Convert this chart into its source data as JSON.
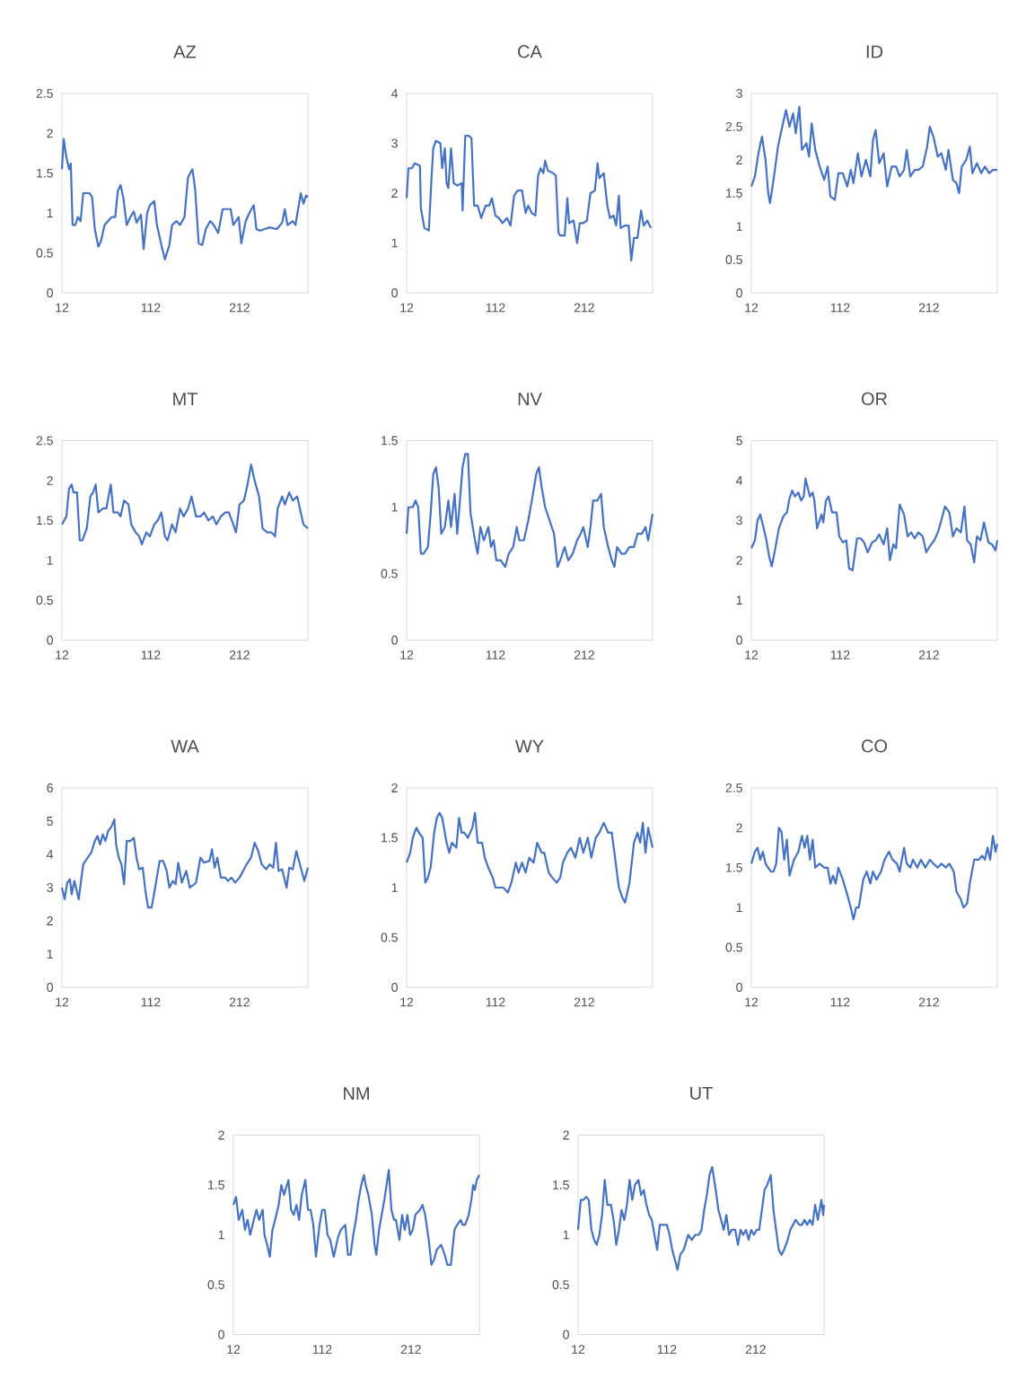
{
  "chart_data": [
    {
      "type": "line",
      "title": "AZ",
      "color": "#4472c4",
      "xlim": [
        12,
        289
      ],
      "xticks": [
        12,
        112,
        212
      ],
      "ylim": [
        0,
        2.5
      ],
      "yticks": [
        0,
        0.5,
        1,
        1.5,
        2,
        2.5
      ],
      "x": [
        12,
        14,
        17,
        20,
        22,
        24,
        27,
        30,
        33,
        36,
        43,
        46,
        49,
        53,
        56,
        60,
        64,
        68,
        72,
        75,
        78,
        81,
        85,
        89,
        93,
        96,
        101,
        104,
        108,
        111,
        116,
        119,
        124,
        128,
        133,
        136,
        141,
        145,
        150,
        154,
        159,
        162,
        166,
        170,
        174,
        179,
        183,
        188,
        193,
        197,
        202,
        205,
        211,
        214,
        219,
        223,
        228,
        231,
        235,
        240,
        246,
        254,
        260,
        263,
        266,
        272,
        275,
        281,
        284,
        287,
        289
      ],
      "values": [
        1.55,
        1.93,
        1.7,
        1.55,
        1.62,
        0.85,
        0.85,
        0.95,
        0.9,
        1.25,
        1.25,
        1.2,
        0.8,
        0.58,
        0.65,
        0.85,
        0.9,
        0.95,
        0.95,
        1.28,
        1.35,
        1.2,
        0.85,
        0.95,
        1.02,
        0.88,
        0.98,
        0.55,
        1.0,
        1.1,
        1.15,
        0.85,
        0.6,
        0.42,
        0.6,
        0.85,
        0.9,
        0.85,
        0.95,
        1.45,
        1.55,
        1.3,
        0.62,
        0.6,
        0.8,
        0.9,
        0.85,
        0.75,
        1.05,
        1.05,
        1.05,
        0.85,
        0.95,
        0.62,
        0.9,
        1.0,
        1.1,
        0.8,
        0.78,
        0.8,
        0.82,
        0.8,
        0.88,
        1.05,
        0.85,
        0.9,
        0.85,
        1.25,
        1.12,
        1.22,
        1.2
      ]
    },
    {
      "type": "line",
      "title": "CA",
      "color": "#4472c4",
      "xlim": [
        12,
        289
      ],
      "xticks": [
        12,
        112,
        212
      ],
      "ylim": [
        0,
        4
      ],
      "yticks": [
        0,
        1,
        2,
        3,
        4
      ],
      "x": [
        12,
        14,
        18,
        21,
        27,
        28,
        32,
        37,
        40,
        42,
        45,
        50,
        52,
        55,
        57,
        59,
        62,
        65,
        69,
        74,
        75,
        78,
        82,
        85,
        88,
        92,
        96,
        101,
        105,
        108,
        112,
        116,
        120,
        125,
        129,
        133,
        137,
        142,
        146,
        149,
        153,
        157,
        160,
        163,
        166,
        168,
        171,
        177,
        180,
        183,
        185,
        190,
        193,
        195,
        200,
        204,
        207,
        211,
        215,
        219,
        224,
        227,
        229,
        234,
        238,
        241,
        245,
        248,
        251,
        253,
        258,
        262,
        265,
        268,
        272,
        276,
        279,
        283,
        287
      ],
      "values": [
        1.9,
        2.5,
        2.5,
        2.6,
        2.55,
        1.7,
        1.3,
        1.25,
        2.3,
        2.9,
        3.05,
        3.0,
        2.5,
        2.9,
        2.2,
        2.1,
        2.9,
        2.2,
        2.15,
        2.2,
        1.65,
        3.15,
        3.15,
        3.1,
        1.75,
        1.75,
        1.5,
        1.75,
        1.75,
        1.9,
        1.55,
        1.5,
        1.4,
        1.5,
        1.35,
        1.95,
        2.05,
        2.05,
        1.6,
        1.75,
        1.6,
        1.55,
        2.35,
        2.5,
        2.4,
        2.65,
        2.45,
        2.4,
        2.35,
        1.2,
        1.15,
        1.15,
        1.9,
        1.4,
        1.45,
        1.0,
        1.4,
        1.4,
        1.45,
        2.0,
        2.05,
        2.6,
        2.3,
        2.4,
        1.75,
        1.5,
        1.55,
        1.35,
        1.95,
        1.3,
        1.35,
        1.35,
        0.65,
        1.1,
        1.1,
        1.65,
        1.35,
        1.45,
        1.3
      ]
    },
    {
      "type": "line",
      "title": "ID",
      "color": "#4472c4",
      "xlim": [
        12,
        289
      ],
      "xticks": [
        12,
        112,
        212
      ],
      "ylim": [
        0,
        3
      ],
      "yticks": [
        0,
        0.5,
        1,
        1.5,
        2,
        2.5,
        3
      ],
      "x": [
        12,
        16,
        20,
        24,
        28,
        31,
        33,
        37,
        42,
        46,
        51,
        55,
        59,
        62,
        66,
        69,
        74,
        77,
        80,
        84,
        89,
        94,
        98,
        101,
        106,
        110,
        115,
        120,
        124,
        127,
        132,
        136,
        141,
        146,
        149,
        152,
        156,
        161,
        165,
        170,
        175,
        179,
        184,
        187,
        191,
        196,
        200,
        205,
        210,
        213,
        217,
        222,
        226,
        231,
        234,
        239,
        243,
        246,
        249,
        254,
        258,
        261,
        266,
        271,
        275,
        280,
        284,
        289
      ],
      "values": [
        1.6,
        1.75,
        2.1,
        2.35,
        2.0,
        1.5,
        1.35,
        1.7,
        2.2,
        2.45,
        2.75,
        2.5,
        2.7,
        2.4,
        2.8,
        2.15,
        2.25,
        2.05,
        2.55,
        2.15,
        1.9,
        1.7,
        1.9,
        1.45,
        1.4,
        1.8,
        1.8,
        1.6,
        1.85,
        1.65,
        2.1,
        1.75,
        2.0,
        1.75,
        2.3,
        2.45,
        1.95,
        2.1,
        1.6,
        1.9,
        1.9,
        1.75,
        1.85,
        2.15,
        1.75,
        1.85,
        1.85,
        1.9,
        2.2,
        2.5,
        2.35,
        2.05,
        2.1,
        1.85,
        2.15,
        1.7,
        1.65,
        1.5,
        1.9,
        2.0,
        2.2,
        1.8,
        1.95,
        1.8,
        1.9,
        1.8,
        1.85,
        1.85
      ]
    },
    {
      "type": "line",
      "title": "MT",
      "color": "#4472c4",
      "xlim": [
        12,
        289
      ],
      "xticks": [
        12,
        112,
        212
      ],
      "ylim": [
        0,
        2.5
      ],
      "yticks": [
        0,
        0.5,
        1,
        1.5,
        2,
        2.5
      ],
      "x": [
        12,
        17,
        20,
        23,
        25,
        29,
        32,
        35,
        40,
        44,
        47,
        50,
        53,
        58,
        62,
        67,
        70,
        75,
        78,
        82,
        87,
        90,
        95,
        99,
        102,
        107,
        111,
        116,
        120,
        124,
        128,
        131,
        136,
        140,
        145,
        149,
        154,
        158,
        163,
        168,
        172,
        177,
        182,
        186,
        191,
        196,
        200,
        205,
        208,
        212,
        217,
        221,
        225,
        229,
        234,
        238,
        243,
        248,
        252,
        255,
        260,
        263,
        268,
        272,
        277,
        281,
        284,
        289
      ],
      "values": [
        1.45,
        1.55,
        1.9,
        1.95,
        1.85,
        1.85,
        1.25,
        1.25,
        1.4,
        1.8,
        1.85,
        1.95,
        1.6,
        1.65,
        1.65,
        1.95,
        1.6,
        1.6,
        1.55,
        1.75,
        1.7,
        1.45,
        1.35,
        1.3,
        1.2,
        1.35,
        1.3,
        1.45,
        1.5,
        1.6,
        1.3,
        1.25,
        1.45,
        1.35,
        1.65,
        1.55,
        1.65,
        1.8,
        1.55,
        1.55,
        1.6,
        1.5,
        1.55,
        1.45,
        1.55,
        1.6,
        1.6,
        1.45,
        1.35,
        1.7,
        1.75,
        1.95,
        2.2,
        2.0,
        1.8,
        1.4,
        1.35,
        1.35,
        1.3,
        1.65,
        1.8,
        1.7,
        1.85,
        1.75,
        1.8,
        1.6,
        1.45,
        1.4
      ]
    },
    {
      "type": "line",
      "title": "NV",
      "color": "#4472c4",
      "xlim": [
        12,
        289
      ],
      "xticks": [
        12,
        112,
        212
      ],
      "ylim": [
        0,
        1.5
      ],
      "yticks": [
        0,
        0.5,
        1,
        1.5
      ],
      "x": [
        12,
        14,
        19,
        22,
        25,
        28,
        31,
        36,
        39,
        42,
        45,
        48,
        51,
        55,
        59,
        62,
        66,
        69,
        72,
        75,
        78,
        81,
        84,
        89,
        92,
        95,
        99,
        104,
        107,
        110,
        113,
        118,
        123,
        127,
        132,
        136,
        139,
        144,
        149,
        153,
        158,
        161,
        164,
        168,
        173,
        178,
        182,
        185,
        190,
        194,
        199,
        204,
        208,
        211,
        216,
        219,
        222,
        227,
        231,
        234,
        239,
        243,
        246,
        249,
        254,
        258,
        263,
        268,
        272,
        277,
        281,
        284,
        289
      ],
      "values": [
        0.8,
        1.0,
        1.0,
        1.05,
        1.0,
        0.65,
        0.65,
        0.7,
        0.95,
        1.25,
        1.3,
        1.15,
        0.8,
        0.85,
        1.05,
        0.85,
        1.1,
        0.8,
        1.05,
        1.3,
        1.4,
        1.4,
        0.95,
        0.75,
        0.65,
        0.85,
        0.75,
        0.85,
        0.7,
        0.75,
        0.6,
        0.6,
        0.55,
        0.65,
        0.7,
        0.85,
        0.75,
        0.75,
        0.9,
        1.05,
        1.25,
        1.3,
        1.15,
        1.0,
        0.9,
        0.8,
        0.55,
        0.6,
        0.7,
        0.6,
        0.65,
        0.75,
        0.8,
        0.85,
        0.7,
        0.85,
        1.05,
        1.05,
        1.1,
        0.85,
        0.7,
        0.6,
        0.55,
        0.7,
        0.65,
        0.65,
        0.7,
        0.7,
        0.8,
        0.8,
        0.85,
        0.75,
        0.95
      ]
    },
    {
      "type": "line",
      "title": "OR",
      "color": "#4472c4",
      "xlim": [
        12,
        289
      ],
      "xticks": [
        12,
        112,
        212
      ],
      "ylim": [
        0,
        5
      ],
      "yticks": [
        0,
        1,
        2,
        3,
        4,
        5
      ],
      "x": [
        12,
        16,
        19,
        22,
        26,
        29,
        32,
        35,
        39,
        43,
        48,
        52,
        55,
        58,
        61,
        65,
        68,
        71,
        73,
        78,
        81,
        83,
        86,
        91,
        93,
        96,
        99,
        103,
        108,
        111,
        115,
        119,
        122,
        126,
        131,
        135,
        139,
        143,
        148,
        152,
        156,
        161,
        165,
        168,
        172,
        175,
        179,
        184,
        188,
        192,
        196,
        200,
        205,
        209,
        213,
        218,
        222,
        226,
        230,
        235,
        239,
        243,
        248,
        252,
        255,
        259,
        263,
        266,
        270,
        274,
        279,
        283,
        287,
        289
      ],
      "values": [
        2.3,
        2.5,
        3.0,
        3.15,
        2.8,
        2.5,
        2.1,
        1.85,
        2.3,
        2.8,
        3.1,
        3.2,
        3.55,
        3.75,
        3.6,
        3.7,
        3.5,
        3.6,
        4.05,
        3.6,
        3.7,
        3.5,
        2.8,
        3.15,
        2.95,
        3.5,
        3.6,
        3.2,
        3.2,
        2.6,
        2.45,
        2.5,
        1.8,
        1.75,
        2.55,
        2.55,
        2.45,
        2.2,
        2.45,
        2.5,
        2.65,
        2.4,
        2.8,
        2.0,
        2.4,
        2.3,
        3.4,
        3.15,
        2.6,
        2.7,
        2.55,
        2.7,
        2.6,
        2.2,
        2.35,
        2.5,
        2.7,
        3.0,
        3.35,
        3.2,
        2.6,
        2.8,
        2.7,
        3.35,
        2.5,
        2.4,
        1.95,
        2.6,
        2.5,
        2.95,
        2.45,
        2.4,
        2.25,
        2.5
      ]
    },
    {
      "type": "line",
      "title": "WA",
      "color": "#4472c4",
      "xlim": [
        12,
        289
      ],
      "xticks": [
        12,
        112,
        212
      ],
      "ylim": [
        0,
        6
      ],
      "yticks": [
        0,
        1,
        2,
        3,
        4,
        5,
        6
      ],
      "x": [
        12,
        15,
        18,
        21,
        23,
        26,
        31,
        33,
        36,
        41,
        45,
        49,
        52,
        55,
        58,
        61,
        64,
        68,
        71,
        73,
        76,
        79,
        82,
        85,
        89,
        93,
        96,
        99,
        103,
        106,
        109,
        113,
        117,
        122,
        126,
        130,
        133,
        137,
        140,
        143,
        147,
        152,
        156,
        161,
        163,
        168,
        172,
        178,
        181,
        184,
        187,
        191,
        196,
        199,
        203,
        207,
        212,
        216,
        220,
        225,
        229,
        233,
        237,
        242,
        246,
        250,
        253,
        256,
        260,
        265,
        268,
        272,
        276,
        281,
        285,
        289
      ],
      "values": [
        3.0,
        2.65,
        3.15,
        3.25,
        2.8,
        3.2,
        2.65,
        3.1,
        3.7,
        3.9,
        4.05,
        4.4,
        4.55,
        4.3,
        4.6,
        4.4,
        4.7,
        4.85,
        5.05,
        4.3,
        3.9,
        3.7,
        3.1,
        4.4,
        4.4,
        4.5,
        3.9,
        3.55,
        3.6,
        2.9,
        2.4,
        2.4,
        3.0,
        3.8,
        3.8,
        3.5,
        3.0,
        3.2,
        3.1,
        3.75,
        3.15,
        3.5,
        3.0,
        3.1,
        3.15,
        3.9,
        3.75,
        3.8,
        4.15,
        3.6,
        3.9,
        3.3,
        3.3,
        3.2,
        3.3,
        3.15,
        3.3,
        3.5,
        3.7,
        3.9,
        4.35,
        4.1,
        3.7,
        3.55,
        3.7,
        3.6,
        4.35,
        3.5,
        3.55,
        3.0,
        3.6,
        3.55,
        4.1,
        3.6,
        3.2,
        3.6
      ]
    },
    {
      "type": "line",
      "title": "WY",
      "color": "#4472c4",
      "xlim": [
        12,
        289
      ],
      "xticks": [
        12,
        112,
        212
      ],
      "ylim": [
        0,
        2
      ],
      "yticks": [
        0,
        0.5,
        1,
        1.5,
        2
      ],
      "x": [
        12,
        16,
        19,
        23,
        26,
        30,
        33,
        36,
        39,
        43,
        46,
        49,
        52,
        57,
        60,
        63,
        68,
        71,
        74,
        77,
        81,
        86,
        89,
        92,
        97,
        100,
        104,
        109,
        112,
        117,
        121,
        126,
        130,
        135,
        138,
        142,
        146,
        150,
        155,
        159,
        164,
        167,
        172,
        176,
        181,
        185,
        188,
        193,
        197,
        202,
        207,
        211,
        216,
        220,
        225,
        229,
        234,
        239,
        243,
        246,
        251,
        255,
        258,
        263,
        268,
        272,
        275,
        278,
        281,
        284,
        289
      ],
      "values": [
        1.25,
        1.35,
        1.5,
        1.6,
        1.55,
        1.5,
        1.05,
        1.1,
        1.2,
        1.55,
        1.7,
        1.75,
        1.7,
        1.45,
        1.35,
        1.45,
        1.4,
        1.7,
        1.55,
        1.55,
        1.5,
        1.6,
        1.75,
        1.45,
        1.45,
        1.3,
        1.2,
        1.1,
        1.0,
        1.0,
        1.0,
        0.95,
        1.05,
        1.25,
        1.15,
        1.25,
        1.15,
        1.3,
        1.25,
        1.45,
        1.35,
        1.35,
        1.15,
        1.1,
        1.05,
        1.1,
        1.25,
        1.35,
        1.4,
        1.3,
        1.5,
        1.35,
        1.5,
        1.3,
        1.5,
        1.55,
        1.65,
        1.55,
        1.55,
        1.35,
        1.0,
        0.9,
        0.85,
        1.05,
        1.45,
        1.55,
        1.45,
        1.65,
        1.35,
        1.6,
        1.4
      ]
    },
    {
      "type": "line",
      "title": "CO",
      "color": "#4472c4",
      "xlim": [
        12,
        289
      ],
      "xticks": [
        12,
        112,
        212
      ],
      "ylim": [
        0,
        2.5
      ],
      "yticks": [
        0,
        0.5,
        1,
        1.5,
        2,
        2.5
      ],
      "x": [
        12,
        16,
        19,
        22,
        25,
        28,
        31,
        34,
        37,
        40,
        43,
        46,
        49,
        52,
        55,
        60,
        65,
        69,
        72,
        75,
        78,
        81,
        84,
        89,
        94,
        98,
        101,
        104,
        107,
        110,
        115,
        119,
        124,
        127,
        130,
        133,
        138,
        142,
        146,
        149,
        153,
        158,
        162,
        167,
        171,
        176,
        179,
        184,
        187,
        191,
        194,
        199,
        203,
        208,
        213,
        217,
        222,
        226,
        231,
        235,
        240,
        243,
        248,
        251,
        255,
        258,
        263,
        268,
        272,
        275,
        278,
        281,
        284,
        287,
        289
      ],
      "values": [
        1.55,
        1.7,
        1.75,
        1.6,
        1.7,
        1.55,
        1.5,
        1.45,
        1.45,
        1.55,
        2.0,
        1.95,
        1.6,
        1.85,
        1.4,
        1.6,
        1.7,
        1.9,
        1.75,
        1.9,
        1.6,
        1.85,
        1.5,
        1.55,
        1.5,
        1.5,
        1.3,
        1.4,
        1.3,
        1.5,
        1.35,
        1.2,
        1.0,
        0.85,
        1.0,
        1.0,
        1.35,
        1.45,
        1.3,
        1.45,
        1.35,
        1.45,
        1.6,
        1.7,
        1.6,
        1.55,
        1.45,
        1.75,
        1.55,
        1.5,
        1.6,
        1.5,
        1.6,
        1.5,
        1.6,
        1.55,
        1.5,
        1.55,
        1.5,
        1.55,
        1.45,
        1.2,
        1.1,
        1.0,
        1.05,
        1.3,
        1.6,
        1.6,
        1.65,
        1.6,
        1.75,
        1.6,
        1.9,
        1.7,
        1.8
      ]
    },
    {
      "type": "line",
      "title": "NM",
      "color": "#4472c4",
      "xlim": [
        12,
        289
      ],
      "xticks": [
        12,
        112,
        212
      ],
      "ylim": [
        0,
        2
      ],
      "yticks": [
        0,
        0.5,
        1,
        1.5,
        2
      ],
      "x": [
        12,
        15,
        18,
        22,
        25,
        28,
        31,
        35,
        38,
        41,
        45,
        47,
        50,
        53,
        56,
        59,
        63,
        66,
        69,
        74,
        77,
        80,
        83,
        86,
        89,
        93,
        96,
        99,
        102,
        105,
        109,
        112,
        115,
        118,
        121,
        125,
        130,
        133,
        138,
        141,
        144,
        147,
        150,
        153,
        156,
        159,
        161,
        164,
        168,
        171,
        173,
        176,
        180,
        182,
        187,
        190,
        193,
        195,
        199,
        202,
        205,
        208,
        211,
        214,
        217,
        222,
        225,
        228,
        232,
        235,
        238,
        241,
        246,
        250,
        253,
        257,
        261,
        264,
        268,
        270,
        273,
        277,
        280,
        282,
        284,
        286,
        289
      ],
      "values": [
        1.3,
        1.38,
        1.15,
        1.25,
        1.05,
        1.15,
        1.0,
        1.15,
        1.25,
        1.15,
        1.25,
        1.0,
        0.9,
        0.78,
        1.05,
        1.15,
        1.3,
        1.5,
        1.4,
        1.55,
        1.25,
        1.2,
        1.3,
        1.15,
        1.4,
        1.55,
        1.25,
        1.25,
        1.1,
        0.78,
        1.1,
        1.25,
        1.25,
        1.0,
        0.95,
        0.78,
        0.98,
        1.05,
        1.1,
        0.8,
        0.8,
        1.0,
        1.15,
        1.35,
        1.5,
        1.6,
        1.5,
        1.4,
        1.2,
        0.9,
        0.8,
        1.05,
        1.25,
        1.35,
        1.65,
        1.25,
        1.15,
        1.15,
        0.95,
        1.2,
        1.05,
        1.2,
        1.0,
        1.05,
        1.2,
        1.25,
        1.3,
        1.2,
        0.95,
        0.7,
        0.75,
        0.85,
        0.9,
        0.8,
        0.7,
        0.7,
        1.05,
        1.1,
        1.15,
        1.1,
        1.1,
        1.2,
        1.35,
        1.5,
        1.45,
        1.55,
        1.6
      ]
    },
    {
      "type": "line",
      "title": "UT",
      "color": "#4472c4",
      "xlim": [
        12,
        289
      ],
      "xticks": [
        12,
        112,
        212
      ],
      "ylim": [
        0,
        2
      ],
      "yticks": [
        0,
        0.5,
        1,
        1.5,
        2
      ],
      "x": [
        12,
        15,
        18,
        21,
        24,
        27,
        30,
        33,
        36,
        39,
        42,
        45,
        49,
        52,
        55,
        58,
        61,
        64,
        67,
        70,
        73,
        76,
        80,
        83,
        86,
        89,
        92,
        95,
        98,
        101,
        104,
        109,
        112,
        115,
        118,
        121,
        124,
        127,
        131,
        136,
        140,
        144,
        148,
        151,
        154,
        157,
        160,
        163,
        167,
        170,
        173,
        176,
        179,
        182,
        185,
        189,
        192,
        195,
        198,
        201,
        204,
        207,
        210,
        213,
        216,
        219,
        222,
        225,
        229,
        232,
        235,
        238,
        241,
        244,
        248,
        251,
        254,
        257,
        261,
        264,
        267,
        270,
        273,
        276,
        279,
        282,
        286,
        288,
        289
      ],
      "values": [
        1.05,
        1.35,
        1.35,
        1.38,
        1.35,
        1.05,
        0.95,
        0.9,
        1.0,
        1.2,
        1.55,
        1.3,
        1.3,
        1.15,
        0.9,
        1.05,
        1.25,
        1.15,
        1.3,
        1.55,
        1.35,
        1.5,
        1.55,
        1.4,
        1.45,
        1.3,
        1.2,
        1.15,
        1.0,
        0.85,
        1.1,
        1.1,
        1.1,
        1.0,
        0.85,
        0.75,
        0.65,
        0.8,
        0.85,
        1.0,
        0.95,
        1.0,
        1.0,
        1.05,
        1.25,
        1.4,
        1.6,
        1.68,
        1.45,
        1.25,
        1.15,
        1.05,
        1.2,
        1.0,
        1.05,
        1.05,
        0.9,
        1.05,
        1.0,
        1.05,
        0.95,
        1.05,
        1.0,
        1.05,
        1.05,
        1.25,
        1.45,
        1.5,
        1.6,
        1.25,
        1.05,
        0.85,
        0.8,
        0.85,
        0.95,
        1.05,
        1.1,
        1.15,
        1.1,
        1.1,
        1.15,
        1.1,
        1.15,
        1.1,
        1.3,
        1.15,
        1.35,
        1.2,
        1.3
      ]
    }
  ]
}
